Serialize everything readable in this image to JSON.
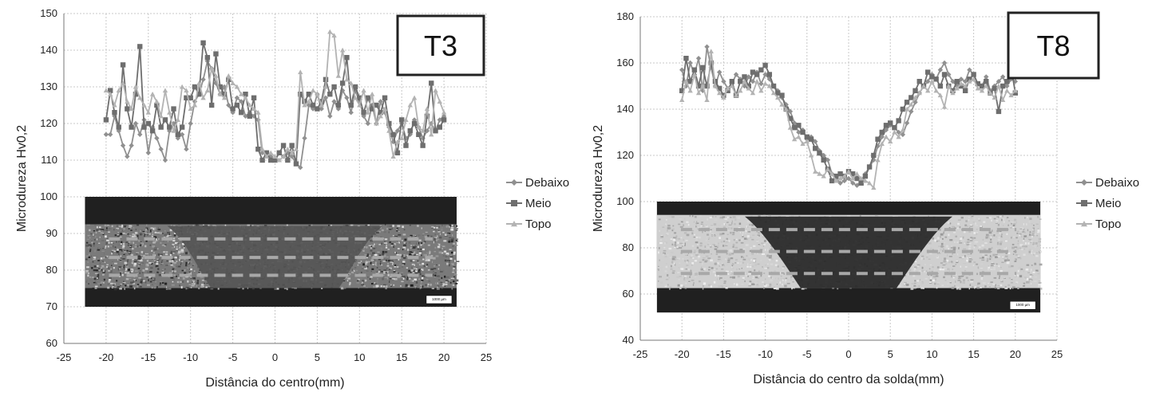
{
  "chart_data": [
    {
      "type": "line",
      "title": "",
      "panel_label": "T3",
      "xlabel": "Distância do centro(mm)",
      "ylabel": "Microdureza Hv0,2",
      "xlim": [
        -25,
        25
      ],
      "ylim": [
        60,
        150
      ],
      "xticks": [
        "-25",
        "-20",
        "-15",
        "-10",
        "-5",
        "0",
        "5",
        "10",
        "15",
        "20",
        "25"
      ],
      "yticks": [
        "60",
        "70",
        "80",
        "90",
        "100",
        "110",
        "120",
        "130",
        "140",
        "150"
      ],
      "grid": true,
      "legend_position": "right",
      "inset_image": {
        "x_range": [
          -22.5,
          21.5
        ],
        "y_range": [
          70,
          100
        ],
        "scale_label": "1000 µm"
      },
      "series": [
        {
          "name": "Debaixo",
          "color": "#909090",
          "x": [
            -20,
            -19.5,
            -19,
            -18.5,
            -18,
            -17.5,
            -17,
            -16.5,
            -16,
            -15.5,
            -15,
            -14.5,
            -14,
            -13.5,
            -13,
            -12.5,
            -12,
            -11.5,
            -11,
            -10.5,
            -10,
            -9.5,
            -9,
            -8.5,
            -8,
            -7.5,
            -7,
            -6.5,
            -6,
            -5.5,
            -5,
            -4.5,
            -4,
            -3.5,
            -3,
            -2.5,
            -2,
            -1.5,
            -1,
            -0.5,
            0,
            0.5,
            1,
            1.5,
            2,
            2.5,
            3,
            3.5,
            4,
            4.5,
            5,
            5.5,
            6,
            6.5,
            7,
            7.5,
            8,
            8.5,
            9,
            9.5,
            10,
            10.5,
            11,
            11.5,
            12,
            12.5,
            13,
            13.5,
            14,
            14.5,
            15,
            15.5,
            16,
            16.5,
            17,
            17.5,
            18,
            18.5,
            19,
            19.5,
            20
          ],
          "y": [
            117,
            117,
            122,
            118,
            114,
            111,
            114,
            120,
            117,
            121,
            112,
            119,
            116,
            113,
            110,
            118,
            120,
            116,
            117,
            113,
            120,
            126,
            128,
            132,
            137,
            135,
            131,
            128,
            130,
            125,
            123,
            127,
            126,
            122,
            123,
            122,
            121,
            112,
            112,
            111,
            110,
            112,
            111,
            112,
            111,
            109,
            108,
            116,
            125,
            124,
            128,
            124,
            127,
            122,
            126,
            124,
            129,
            127,
            123,
            129,
            126,
            122,
            120,
            125,
            120,
            126,
            123,
            119,
            115,
            118,
            120,
            116,
            117,
            121,
            119,
            116,
            118,
            120,
            118,
            121,
            122
          ]
        },
        {
          "name": "Meio",
          "color": "#6e6e6e",
          "x": [
            -20,
            -19.5,
            -19,
            -18.5,
            -18,
            -17.5,
            -17,
            -16.5,
            -16,
            -15.5,
            -15,
            -14.5,
            -14,
            -13.5,
            -13,
            -12.5,
            -12,
            -11.5,
            -11,
            -10.5,
            -10,
            -9.5,
            -9,
            -8.5,
            -8,
            -7.5,
            -7,
            -6.5,
            -6,
            -5.5,
            -5,
            -4.5,
            -4,
            -3.5,
            -3,
            -2.5,
            -2,
            -1.5,
            -1,
            -0.5,
            0,
            0.5,
            1,
            1.5,
            2,
            2.5,
            3,
            3.5,
            4,
            4.5,
            5,
            5.5,
            6,
            6.5,
            7,
            7.5,
            8,
            8.5,
            9,
            9.5,
            10,
            10.5,
            11,
            11.5,
            12,
            12.5,
            13,
            13.5,
            14,
            14.5,
            15,
            15.5,
            16,
            16.5,
            17,
            17.5,
            18,
            18.5,
            19,
            19.5,
            20
          ],
          "y": [
            121,
            129,
            123,
            119,
            136,
            124,
            119,
            128,
            141,
            119,
            120,
            118,
            125,
            119,
            121,
            119,
            124,
            117,
            119,
            127,
            127,
            130,
            128,
            142,
            138,
            125,
            139,
            130,
            128,
            132,
            124,
            125,
            123,
            128,
            122,
            127,
            113,
            110,
            112,
            110,
            110,
            112,
            114,
            110,
            114,
            109,
            128,
            126,
            128,
            125,
            124,
            126,
            132,
            128,
            130,
            125,
            131,
            138,
            125,
            130,
            127,
            123,
            127,
            124,
            125,
            123,
            127,
            120,
            117,
            112,
            121,
            114,
            118,
            120,
            117,
            114,
            122,
            131,
            118,
            119,
            121
          ]
        },
        {
          "name": "Topo",
          "color": "#b3b3b3",
          "x": [
            -20,
            -19.5,
            -19,
            -18.5,
            -18,
            -17.5,
            -17,
            -16.5,
            -16,
            -15.5,
            -15,
            -14.5,
            -14,
            -13.5,
            -13,
            -12.5,
            -12,
            -11.5,
            -11,
            -10.5,
            -10,
            -9.5,
            -9,
            -8.5,
            -8,
            -7.5,
            -7,
            -6.5,
            -6,
            -5.5,
            -5,
            -4.5,
            -4,
            -3.5,
            -3,
            -2.5,
            -2,
            -1.5,
            -1,
            -0.5,
            0,
            0.5,
            1,
            1.5,
            2,
            2.5,
            3,
            3.5,
            4,
            4.5,
            5,
            5.5,
            6,
            6.5,
            7,
            7.5,
            8,
            8.5,
            9,
            9.5,
            10,
            10.5,
            11,
            11.5,
            12,
            12.5,
            13,
            13.5,
            14,
            14.5,
            15,
            15.5,
            16,
            16.5,
            17,
            17.5,
            18,
            18.5,
            19,
            19.5,
            20
          ],
          "y": [
            129,
            128,
            125,
            129,
            131,
            126,
            124,
            130,
            127,
            125,
            123,
            128,
            126,
            122,
            129,
            123,
            118,
            121,
            130,
            129,
            124,
            125,
            131,
            127,
            129,
            135,
            133,
            128,
            127,
            133,
            131,
            130,
            128,
            127,
            125,
            124,
            123,
            113,
            111,
            112,
            111,
            110,
            111,
            113,
            112,
            113,
            134,
            125,
            126,
            129,
            128,
            125,
            130,
            145,
            144,
            133,
            140,
            132,
            131,
            127,
            125,
            129,
            123,
            128,
            120,
            122,
            124,
            118,
            111,
            115,
            116,
            121,
            125,
            127,
            119,
            118,
            124,
            117,
            129,
            126,
            123
          ]
        }
      ]
    },
    {
      "type": "line",
      "title": "",
      "panel_label": "T8",
      "xlabel": "Distância do centro da solda(mm)",
      "ylabel": "Microdureza Hv0,2",
      "xlim": [
        -25,
        25
      ],
      "ylim": [
        40,
        180
      ],
      "xticks": [
        "-25",
        "-20",
        "-15",
        "-10",
        "-5",
        "0",
        "5",
        "10",
        "15",
        "20",
        "25"
      ],
      "yticks": [
        "40",
        "60",
        "80",
        "100",
        "120",
        "140",
        "160",
        "180"
      ],
      "grid": true,
      "legend_position": "right",
      "inset_image": {
        "x_range": [
          -23,
          23
        ],
        "y_range": [
          52,
          100
        ],
        "scale_label": "1000 µm"
      },
      "series": [
        {
          "name": "Debaixo",
          "color": "#909090",
          "x": [
            -20,
            -19.5,
            -19,
            -18.5,
            -18,
            -17.5,
            -17,
            -16.5,
            -16,
            -15.5,
            -15,
            -14.5,
            -14,
            -13.5,
            -13,
            -12.5,
            -12,
            -11.5,
            -11,
            -10.5,
            -10,
            -9.5,
            -9,
            -8.5,
            -8,
            -7.5,
            -7,
            -6.5,
            -6,
            -5.5,
            -5,
            -4.5,
            -4,
            -3.5,
            -3,
            -2.5,
            -2,
            -1.5,
            -1,
            -0.5,
            0,
            0.5,
            1,
            1.5,
            2,
            2.5,
            3,
            3.5,
            4,
            4.5,
            5,
            5.5,
            6,
            6.5,
            7,
            7.5,
            8,
            8.5,
            9,
            9.5,
            10,
            10.5,
            11,
            11.5,
            12,
            12.5,
            13,
            13.5,
            14,
            14.5,
            15,
            15.5,
            16,
            16.5,
            17,
            17.5,
            18,
            18.5,
            19,
            19.5,
            20
          ],
          "y": [
            157,
            150,
            160,
            155,
            162,
            148,
            167,
            158,
            150,
            156,
            152,
            149,
            151,
            155,
            153,
            150,
            154,
            152,
            156,
            151,
            155,
            153,
            150,
            148,
            145,
            142,
            139,
            134,
            130,
            131,
            127,
            128,
            126,
            122,
            120,
            118,
            112,
            110,
            108,
            109,
            110,
            108,
            107,
            109,
            112,
            115,
            118,
            124,
            128,
            131,
            133,
            132,
            130,
            129,
            134,
            139,
            143,
            147,
            150,
            152,
            155,
            153,
            157,
            160,
            155,
            152,
            150,
            153,
            152,
            157,
            155,
            151,
            150,
            154,
            148,
            150,
            152,
            154,
            150,
            153,
            152
          ]
        },
        {
          "name": "Meio",
          "color": "#6e6e6e",
          "x": [
            -20,
            -19.5,
            -19,
            -18.5,
            -18,
            -17.5,
            -17,
            -16.5,
            -16,
            -15.5,
            -15,
            -14.5,
            -14,
            -13.5,
            -13,
            -12.5,
            -12,
            -11.5,
            -11,
            -10.5,
            -10,
            -9.5,
            -9,
            -8.5,
            -8,
            -7.5,
            -7,
            -6.5,
            -6,
            -5.5,
            -5,
            -4.5,
            -4,
            -3.5,
            -3,
            -2.5,
            -2,
            -1.5,
            -1,
            -0.5,
            0,
            0.5,
            1,
            1.5,
            2,
            2.5,
            3,
            3.5,
            4,
            4.5,
            5,
            5.5,
            6,
            6.5,
            7,
            7.5,
            8,
            8.5,
            9,
            9.5,
            10,
            10.5,
            11,
            11.5,
            12,
            12.5,
            13,
            13.5,
            14,
            14.5,
            15,
            15.5,
            16,
            16.5,
            17,
            17.5,
            18,
            18.5,
            19,
            19.5,
            20
          ],
          "y": [
            148,
            162,
            152,
            157,
            150,
            158,
            150,
            160,
            152,
            149,
            146,
            148,
            152,
            146,
            152,
            154,
            150,
            156,
            155,
            157,
            159,
            155,
            150,
            147,
            146,
            140,
            136,
            132,
            133,
            130,
            128,
            127,
            123,
            121,
            118,
            114,
            109,
            111,
            112,
            111,
            113,
            112,
            110,
            108,
            111,
            115,
            120,
            127,
            130,
            133,
            134,
            132,
            135,
            140,
            143,
            145,
            148,
            152,
            150,
            156,
            154,
            153,
            150,
            155,
            150,
            148,
            152,
            150,
            148,
            153,
            155,
            151,
            150,
            152,
            147,
            149,
            139,
            150,
            152,
            158,
            147
          ]
        },
        {
          "name": "Topo",
          "color": "#b3b3b3",
          "x": [
            -20,
            -19.5,
            -19,
            -18.5,
            -18,
            -17.5,
            -17,
            -16.5,
            -16,
            -15.5,
            -15,
            -14.5,
            -14,
            -13.5,
            -13,
            -12.5,
            -12,
            -11.5,
            -11,
            -10.5,
            -10,
            -9.5,
            -9,
            -8.5,
            -8,
            -7.5,
            -7,
            -6.5,
            -6,
            -5.5,
            -5,
            -4.5,
            -4,
            -3.5,
            -3,
            -2.5,
            -2,
            -1.5,
            -1,
            -0.5,
            0,
            0.5,
            1,
            1.5,
            2,
            2.5,
            3,
            3.5,
            4,
            4.5,
            5,
            5.5,
            6,
            6.5,
            7,
            7.5,
            8,
            8.5,
            9,
            9.5,
            10,
            10.5,
            11,
            11.5,
            12,
            12.5,
            13,
            13.5,
            14,
            14.5,
            15,
            15.5,
            16,
            16.5,
            17,
            17.5,
            18,
            18.5,
            19,
            19.5,
            20
          ],
          "y": [
            144,
            152,
            148,
            155,
            147,
            150,
            144,
            165,
            150,
            147,
            145,
            149,
            150,
            146,
            148,
            152,
            149,
            147,
            152,
            148,
            151,
            150,
            147,
            145,
            142,
            140,
            132,
            127,
            128,
            125,
            126,
            120,
            113,
            112,
            111,
            114,
            112,
            109,
            110,
            111,
            113,
            110,
            112,
            110,
            109,
            108,
            106,
            118,
            125,
            128,
            126,
            130,
            128,
            131,
            140,
            142,
            145,
            147,
            150,
            148,
            152,
            148,
            146,
            141,
            150,
            147,
            149,
            151,
            150,
            152,
            153,
            149,
            148,
            150,
            147,
            145,
            150,
            144,
            148,
            146,
            148
          ]
        }
      ]
    }
  ]
}
